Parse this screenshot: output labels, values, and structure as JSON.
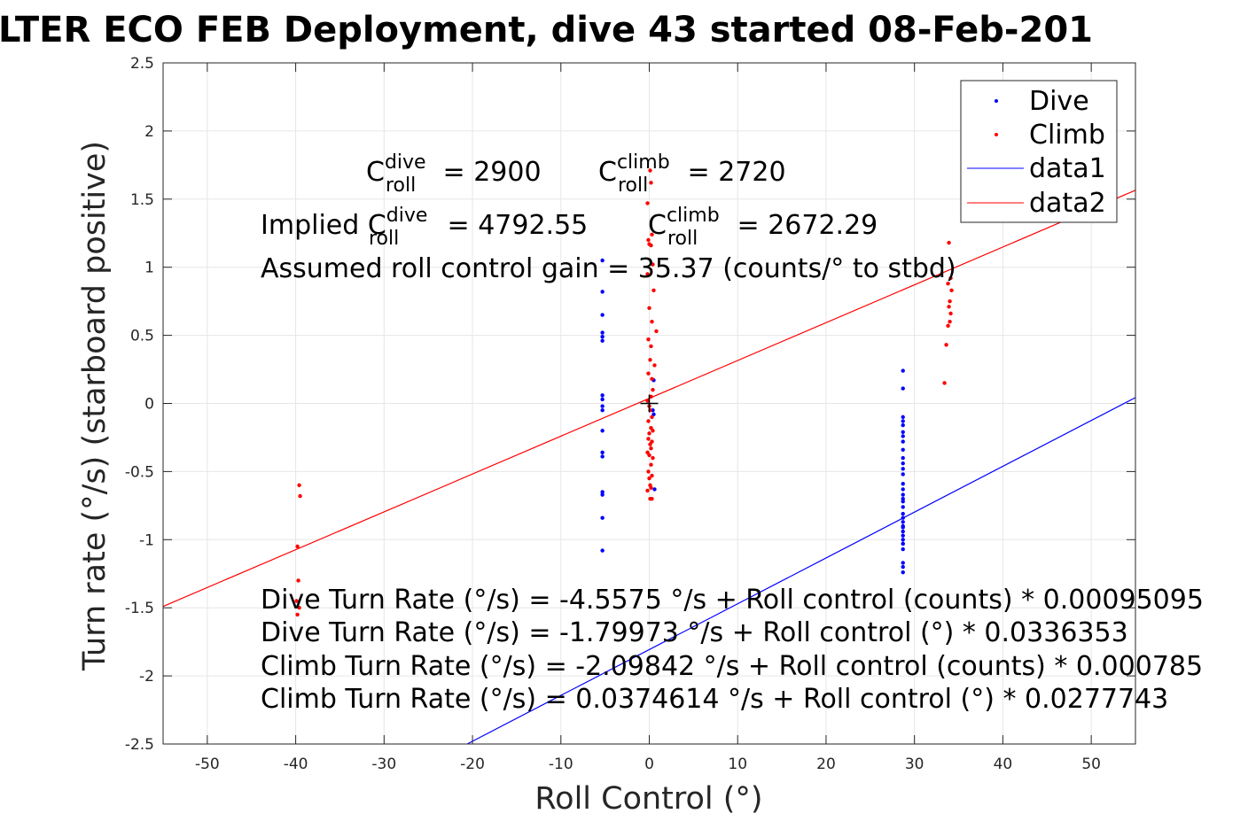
{
  "chart_data": {
    "type": "scatter",
    "title": "LTER ECO FEB Deployment, dive 43 started 08-Feb-201",
    "xlabel": "Roll Control (°)",
    "ylabel": "Turn rate (°/s) (starboard positive)",
    "xlim": [
      -55,
      55
    ],
    "ylim": [
      -2.5,
      2.5
    ],
    "xticks": [
      -50,
      -40,
      -30,
      -20,
      -10,
      0,
      10,
      20,
      30,
      40,
      50
    ],
    "yticks": [
      -2.5,
      -2,
      -1.5,
      -1,
      -0.5,
      0,
      0.5,
      1,
      1.5,
      2,
      2.5
    ],
    "xtick_labels": [
      "-50",
      "-40",
      "-30",
      "-20",
      "-10",
      "0",
      "10",
      "20",
      "30",
      "40",
      "50"
    ],
    "ytick_labels": [
      "-2.5",
      "-2",
      "-1.5",
      "-1",
      "-0.5",
      "0",
      "0.5",
      "1",
      "1.5",
      "2",
      "2.5"
    ],
    "grid": true,
    "legend_position": "top-right",
    "series": [
      {
        "name": "Dive",
        "kind": "points",
        "color": "#0000ff",
        "x": [
          -5.3,
          -5.3,
          -5.3,
          -5.3,
          -5.3,
          -5.3,
          -5.3,
          -5.3,
          -5.3,
          -5.3,
          -5.3,
          -5.3,
          -5.3,
          -5.3,
          -5.3,
          -5.3,
          -5.3,
          0.5,
          0.4,
          0.5,
          0.6,
          28.7,
          28.7,
          28.7,
          28.7,
          28.7,
          28.7,
          28.7,
          28.7,
          28.7,
          28.7,
          28.7,
          28.7,
          28.7,
          28.7,
          28.7,
          28.7,
          28.7,
          28.7,
          28.7,
          28.7,
          28.7,
          28.7,
          28.7,
          28.7,
          28.7,
          28.7,
          28.7,
          28.7,
          28.7,
          28.7,
          28.7,
          28.7,
          28.7
        ],
        "y": [
          1.05,
          0.82,
          0.65,
          0.52,
          0.49,
          0.46,
          0.06,
          0.03,
          -0.02,
          -0.05,
          -0.2,
          -0.36,
          -0.39,
          -0.65,
          -0.67,
          -0.84,
          -1.08,
          0.17,
          -0.05,
          -0.08,
          -0.63,
          0.24,
          0.11,
          -0.1,
          -0.13,
          -0.16,
          -0.21,
          -0.24,
          -0.28,
          -0.34,
          -0.4,
          -0.44,
          -0.48,
          -0.52,
          -0.59,
          -0.63,
          -0.67,
          -0.7,
          -0.72,
          -0.76,
          -0.81,
          -0.84,
          -0.87,
          -0.9,
          -0.94,
          -0.97,
          -1.0,
          -1.03,
          -1.07,
          -1.17,
          -1.2,
          -1.24,
          -1.03,
          -0.91
        ]
      },
      {
        "name": "Climb",
        "kind": "points",
        "color": "#ff0000",
        "x": [
          -39.6,
          -39.5,
          -39.8,
          -39.7,
          -39.9,
          -39.6,
          -39.8,
          0.1,
          0.2,
          -0.2,
          0.3,
          -0.1,
          0.0,
          0.2,
          0.4,
          -0.2,
          0.5,
          0.0,
          0.3,
          -0.1,
          0.8,
          0.2,
          0.1,
          0.6,
          -0.1,
          0.3,
          0.4,
          0.2,
          -0.2,
          0.0,
          0.1,
          0.3,
          -0.1,
          0.2,
          0.4,
          0.0,
          -0.1,
          0.3,
          0.1,
          0.2,
          -0.2,
          0.0,
          0.4,
          0.2,
          -0.1,
          0.3,
          0.0,
          0.1,
          0.2,
          -0.2,
          0.3,
          0.1,
          33.9,
          34.1,
          33.8,
          34.2,
          34.0,
          33.9,
          34.1,
          34.0,
          33.8,
          33.6,
          33.4
        ],
        "y": [
          -0.6,
          -0.68,
          -1.05,
          -1.3,
          -1.45,
          -1.5,
          -1.55,
          1.71,
          1.62,
          1.47,
          1.24,
          1.2,
          1.17,
          1.16,
          1.02,
          0.95,
          0.83,
          0.7,
          0.6,
          0.47,
          0.53,
          0.42,
          0.32,
          0.28,
          0.22,
          0.18,
          0.1,
          0.05,
          0.02,
          -0.02,
          -0.05,
          -0.1,
          -0.13,
          -0.18,
          -0.2,
          -0.22,
          -0.26,
          -0.28,
          -0.3,
          -0.33,
          -0.36,
          -0.38,
          -0.4,
          -0.45,
          -0.5,
          -0.53,
          -0.55,
          -0.6,
          -0.62,
          -0.64,
          -0.7,
          -0.7,
          1.18,
          0.92,
          0.88,
          0.83,
          0.75,
          0.71,
          0.66,
          0.6,
          0.57,
          0.43,
          0.15
        ]
      },
      {
        "name": "data1",
        "kind": "line",
        "color": "#0000ff",
        "x": [
          -20.6,
          55
        ],
        "y": [
          -2.5,
          0.043
        ]
      },
      {
        "name": "data2",
        "kind": "line",
        "color": "#ff0000",
        "x": [
          -55,
          55
        ],
        "y": [
          -1.4901,
          1.565
        ]
      }
    ],
    "center_marker": {
      "x": 0,
      "y": 0,
      "color": "#000000"
    },
    "annotations": {
      "c_dive": {
        "prefix": "C",
        "sup": "dive",
        "sub": "roll",
        "suffix": " = 2900"
      },
      "c_climb": {
        "prefix": "C",
        "sup": "climb",
        "sub": "roll",
        "suffix": " = 2720"
      },
      "implied_dive": {
        "prefix": "Implied C",
        "sup": "dive",
        "sub": "roll",
        "suffix": " = 4792.55"
      },
      "implied_climb": {
        "prefix": "C",
        "sup": "climb",
        "sub": "roll",
        "suffix": " = 2672.29"
      },
      "gain": "Assumed roll control gain = 35.37 (counts/° to stbd)",
      "eq_lines": [
        "Dive Turn Rate (°/s) = -4.5575 °/s + Roll control (counts) * 0.00095095",
        "Dive Turn Rate (°/s) = -1.79973 °/s + Roll control (°) * 0.0336353",
        "Climb Turn Rate (°/s) = -2.09842 °/s + Roll control (counts) * 0.000785",
        "Climb Turn Rate (°/s) = 0.0374614 °/s + Roll control (°) * 0.0277743"
      ]
    }
  }
}
